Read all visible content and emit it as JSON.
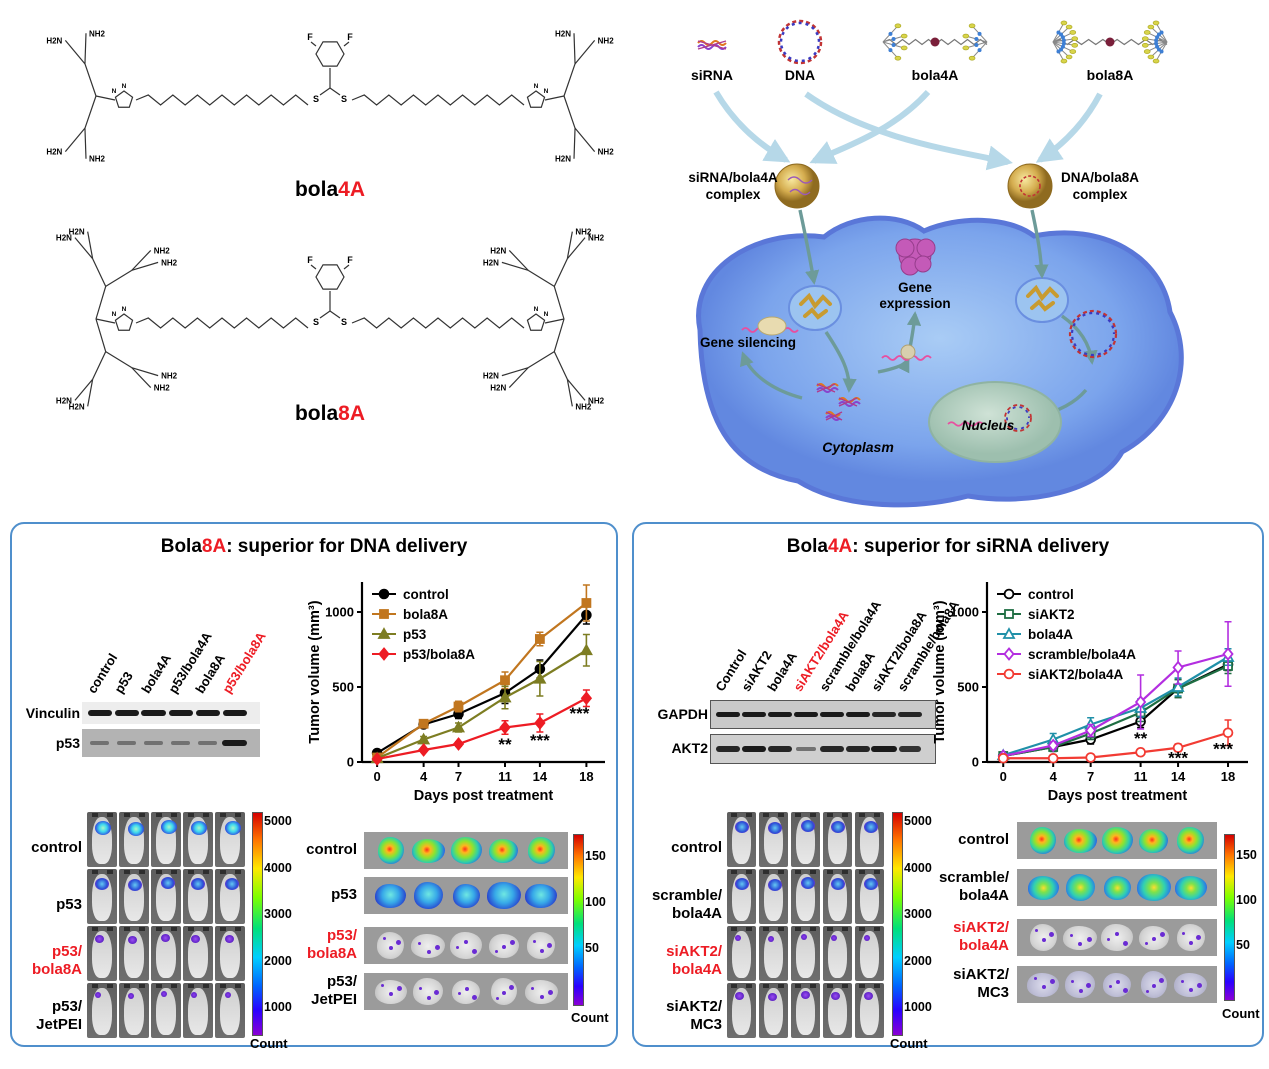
{
  "structures": {
    "bola4a": {
      "name_black": "bola",
      "name_red": "4A"
    },
    "bola8a": {
      "name_black": "bola",
      "name_red": "8A"
    },
    "atoms": {
      "amine": "NH2",
      "amine_rev": "H2N",
      "fluorine": "F",
      "sulfur": "S",
      "nitrogen": "N"
    }
  },
  "scheme": {
    "sirna": "siRNA",
    "dna": "DNA",
    "bola4a": "bola4A",
    "bola8a": "bola8A",
    "complex_left": [
      "siRNA/bola4A",
      "complex"
    ],
    "complex_right": [
      "DNA/bola8A",
      "complex"
    ],
    "gene_expression": [
      "Gene",
      "expression"
    ],
    "gene_silencing": "Gene silencing",
    "cytoplasm": "Cytoplasm",
    "nucleus": "Nucleus"
  },
  "left_panel": {
    "title": {
      "black1": "Bola",
      "red": "8A",
      "black2": ": superior for DNA delivery"
    },
    "blot": {
      "row_labels": [
        "Vinculin",
        "p53"
      ],
      "lanes": [
        {
          "label": "control",
          "red": false
        },
        {
          "label": "p53",
          "red": false
        },
        {
          "label": "bola4A",
          "red": false
        },
        {
          "label": "p53/bola4A",
          "red": false
        },
        {
          "label": "bola8A",
          "red": false
        },
        {
          "label": "p53/bola8A",
          "red": true
        }
      ]
    },
    "mouse_rows": [
      {
        "lines": [
          "control"
        ],
        "red": false
      },
      {
        "lines": [
          "p53"
        ],
        "red": false
      },
      {
        "lines": [
          "p53/",
          "bola8A"
        ],
        "red": true
      },
      {
        "lines": [
          "p53/",
          "JetPEI"
        ],
        "red": false
      }
    ],
    "mouse_colorbar": {
      "ticks": [
        "5000",
        "4000",
        "3000",
        "2000",
        "1000"
      ],
      "label": "Count"
    },
    "tumor_rows": [
      {
        "lines": [
          "control"
        ],
        "red": false
      },
      {
        "lines": [
          "p53"
        ],
        "red": false
      },
      {
        "lines": [
          "p53/",
          "bola8A"
        ],
        "red": true
      },
      {
        "lines": [
          "p53/",
          "JetPEI"
        ],
        "red": false
      }
    ],
    "tumor_colorbar": {
      "ticks": [
        "150",
        "100",
        "50"
      ],
      "label": "Count"
    }
  },
  "right_panel": {
    "title": {
      "black1": "Bola",
      "red": "4A",
      "black2": ": superior for siRNA delivery"
    },
    "blot": {
      "row_labels": [
        "GAPDH",
        "AKT2"
      ],
      "lanes": [
        {
          "label": "Control",
          "red": false
        },
        {
          "label": "siAKT2",
          "red": false
        },
        {
          "label": "bola4A",
          "red": false
        },
        {
          "label": "siAKT2/bola4A",
          "red": true
        },
        {
          "label": "scramble/bola4A",
          "red": false
        },
        {
          "label": "bola8A",
          "red": false
        },
        {
          "label": "siAKT2/bola8A",
          "red": false
        },
        {
          "label": "scramble/bola8A",
          "red": false
        }
      ]
    },
    "mouse_rows": [
      {
        "lines": [
          "control"
        ],
        "red": false
      },
      {
        "lines": [
          "scramble/",
          "bola4A"
        ],
        "red": false
      },
      {
        "lines": [
          "siAKT2/",
          "bola4A"
        ],
        "red": true
      },
      {
        "lines": [
          "siAKT2/",
          "MC3"
        ],
        "red": false
      }
    ],
    "mouse_colorbar": {
      "ticks": [
        "5000",
        "4000",
        "3000",
        "2000",
        "1000"
      ],
      "label": "Count"
    },
    "tumor_rows": [
      {
        "lines": [
          "control"
        ],
        "red": false
      },
      {
        "lines": [
          "scramble/",
          "bola4A"
        ],
        "red": false
      },
      {
        "lines": [
          "siAKT2/",
          "bola4A"
        ],
        "red": true
      },
      {
        "lines": [
          "siAKT2/",
          "MC3"
        ],
        "red": false
      }
    ],
    "tumor_colorbar": {
      "ticks": [
        "150",
        "100",
        "50"
      ],
      "label": "Count"
    }
  },
  "chart_data": [
    {
      "type": "line",
      "panel": "left",
      "title": "",
      "x": [
        0,
        4,
        7,
        11,
        14,
        18
      ],
      "xlabel": "Days post treatment",
      "ylabel": "Tumor volume (mm³)",
      "ylim": [
        0,
        1200
      ],
      "yticks": [
        0,
        500,
        1000
      ],
      "legend_position": "top-left",
      "series": [
        {
          "name": "control",
          "color": "#000000",
          "marker": "circle",
          "filled": true,
          "values": [
            60,
            250,
            320,
            460,
            620,
            980
          ],
          "err": [
            15,
            20,
            30,
            70,
            60,
            60
          ]
        },
        {
          "name": "bola8A",
          "color": "#c1761f",
          "marker": "square",
          "filled": true,
          "values": [
            30,
            255,
            370,
            545,
            820,
            1060
          ],
          "err": [
            10,
            15,
            35,
            55,
            45,
            120
          ]
        },
        {
          "name": "p53",
          "color": "#7d7d22",
          "marker": "triangle",
          "filled": true,
          "values": [
            25,
            150,
            230,
            430,
            555,
            745
          ],
          "err": [
            8,
            20,
            30,
            75,
            115,
            105
          ]
        },
        {
          "name": "p53/bola8A",
          "color": "#ed1c24",
          "marker": "diamond",
          "filled": true,
          "values": [
            20,
            80,
            120,
            230,
            260,
            425
          ],
          "err": [
            5,
            10,
            15,
            45,
            60,
            55
          ]
        }
      ],
      "annotations": [
        {
          "x": 11,
          "y": 115,
          "text": "**"
        },
        {
          "x": 14,
          "y": 140,
          "text": "***"
        },
        {
          "x": 17.4,
          "y": 320,
          "text": "***"
        }
      ]
    },
    {
      "type": "line",
      "panel": "right",
      "title": "",
      "x": [
        0,
        4,
        7,
        11,
        14,
        18
      ],
      "xlabel": "Days post treatment",
      "ylabel": "Tumor volume (mm³)",
      "ylim": [
        0,
        1200
      ],
      "yticks": [
        0,
        500,
        1000
      ],
      "legend_position": "top-left",
      "series": [
        {
          "name": "control",
          "color": "#000000",
          "marker": "circle",
          "filled": false,
          "values": [
            40,
            100,
            150,
            270,
            490,
            650
          ],
          "err": [
            10,
            25,
            30,
            40,
            60,
            40
          ]
        },
        {
          "name": "siAKT2",
          "color": "#1f6e43",
          "marker": "square",
          "filled": false,
          "values": [
            40,
            100,
            190,
            330,
            490,
            640
          ],
          "err": [
            10,
            30,
            40,
            60,
            60,
            50
          ]
        },
        {
          "name": "bola4A",
          "color": "#2090a8",
          "marker": "triangle",
          "filled": false,
          "values": [
            45,
            150,
            250,
            360,
            500,
            700
          ],
          "err": [
            10,
            40,
            45,
            60,
            60,
            55
          ]
        },
        {
          "name": "scramble/bola4A",
          "color": "#b32ee0",
          "marker": "diamond",
          "filled": false,
          "values": [
            40,
            110,
            210,
            400,
            630,
            720
          ],
          "err": [
            10,
            25,
            40,
            180,
            110,
            215
          ]
        },
        {
          "name": "siAKT2/bola4A",
          "color": "#f23b33",
          "marker": "circle",
          "filled": false,
          "values": [
            25,
            25,
            30,
            65,
            95,
            195
          ],
          "err": [
            5,
            8,
            10,
            20,
            25,
            85
          ]
        }
      ],
      "annotations": [
        {
          "x": 11,
          "y": 155,
          "text": "**"
        },
        {
          "x": 14,
          "y": 22,
          "text": "***"
        },
        {
          "x": 17.6,
          "y": 85,
          "text": "***"
        }
      ]
    }
  ]
}
